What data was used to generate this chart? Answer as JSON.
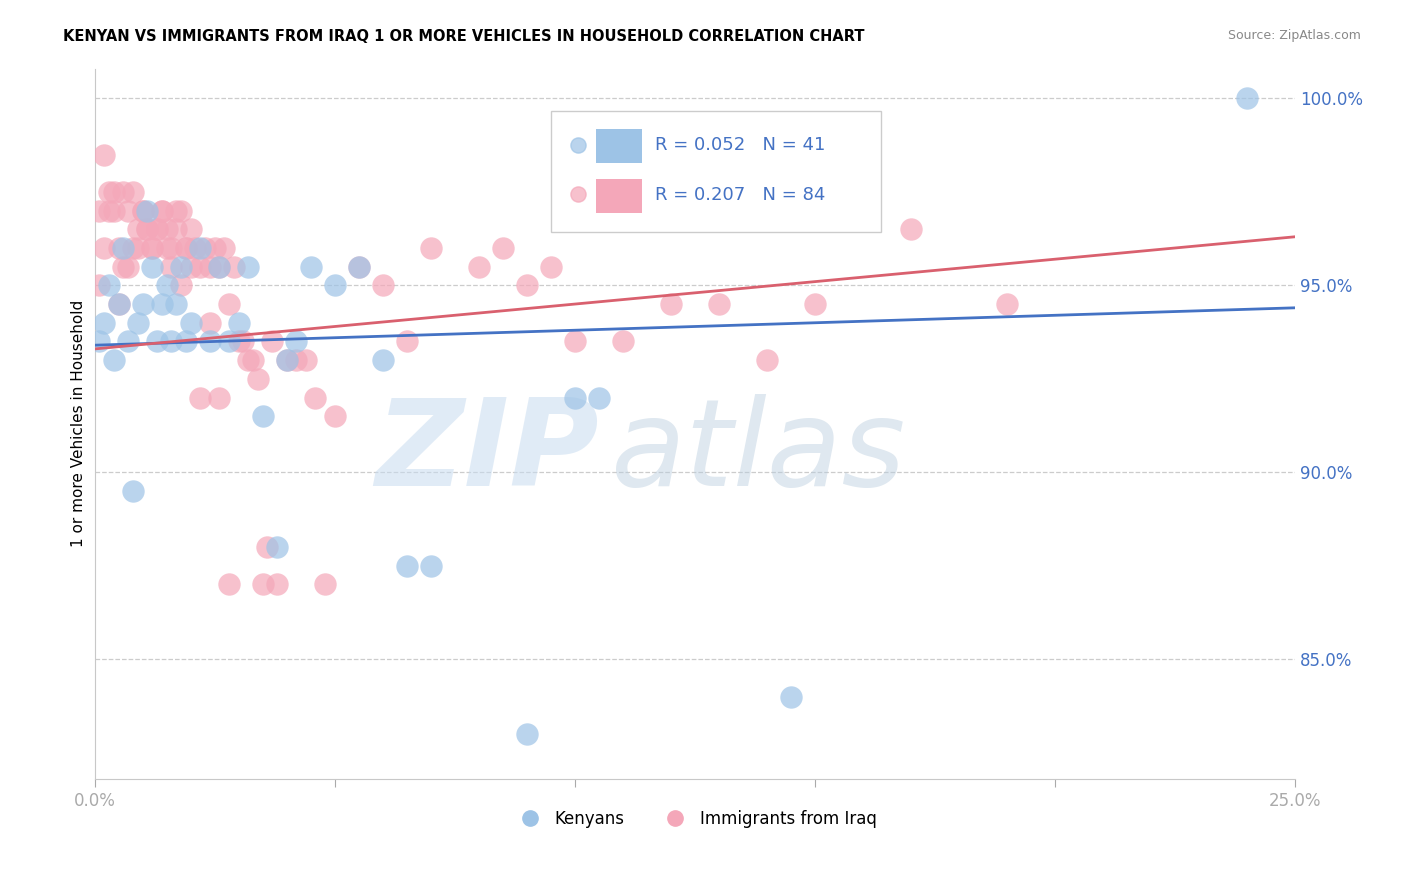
{
  "title": "KENYAN VS IMMIGRANTS FROM IRAQ 1 OR MORE VEHICLES IN HOUSEHOLD CORRELATION CHART",
  "source": "Source: ZipAtlas.com",
  "ylabel": "1 or more Vehicles in Household",
  "xmin": 0.0,
  "xmax": 0.25,
  "ymin": 0.818,
  "ymax": 1.008,
  "x_ticks": [
    0.0,
    0.05,
    0.1,
    0.15,
    0.2,
    0.25
  ],
  "x_tick_labels": [
    "0.0%",
    "",
    "",
    "",
    "",
    "25.0%"
  ],
  "y_ticks": [
    0.85,
    0.9,
    0.95,
    1.0
  ],
  "y_tick_labels": [
    "85.0%",
    "90.0%",
    "95.0%",
    "100.0%"
  ],
  "blue_color": "#9DC3E6",
  "pink_color": "#F4A7B9",
  "blue_line_color": "#4472C4",
  "pink_line_color": "#D9606E",
  "watermark_zip": "ZIP",
  "watermark_atlas": "atlas",
  "kenyans_label": "Kenyans",
  "iraq_label": "Immigrants from Iraq",
  "blue_scatter_x": [
    0.001,
    0.002,
    0.003,
    0.004,
    0.005,
    0.006,
    0.007,
    0.008,
    0.009,
    0.01,
    0.011,
    0.012,
    0.013,
    0.014,
    0.015,
    0.016,
    0.017,
    0.018,
    0.019,
    0.02,
    0.022,
    0.024,
    0.026,
    0.028,
    0.03,
    0.032,
    0.035,
    0.038,
    0.04,
    0.042,
    0.045,
    0.05,
    0.055,
    0.06,
    0.065,
    0.07,
    0.09,
    0.1,
    0.105,
    0.145,
    0.24
  ],
  "blue_scatter_y": [
    0.935,
    0.94,
    0.95,
    0.93,
    0.945,
    0.96,
    0.935,
    0.895,
    0.94,
    0.945,
    0.97,
    0.955,
    0.935,
    0.945,
    0.95,
    0.935,
    0.945,
    0.955,
    0.935,
    0.94,
    0.96,
    0.935,
    0.955,
    0.935,
    0.94,
    0.955,
    0.915,
    0.88,
    0.93,
    0.935,
    0.955,
    0.95,
    0.955,
    0.93,
    0.875,
    0.875,
    0.83,
    0.92,
    0.92,
    0.84,
    1.0
  ],
  "pink_scatter_x": [
    0.001,
    0.002,
    0.003,
    0.004,
    0.005,
    0.006,
    0.007,
    0.008,
    0.009,
    0.01,
    0.011,
    0.012,
    0.013,
    0.014,
    0.015,
    0.016,
    0.017,
    0.018,
    0.019,
    0.02,
    0.021,
    0.022,
    0.023,
    0.024,
    0.025,
    0.026,
    0.027,
    0.028,
    0.029,
    0.03,
    0.031,
    0.032,
    0.033,
    0.034,
    0.035,
    0.036,
    0.037,
    0.038,
    0.04,
    0.042,
    0.044,
    0.046,
    0.048,
    0.05,
    0.055,
    0.06,
    0.065,
    0.07,
    0.08,
    0.085,
    0.09,
    0.095,
    0.1,
    0.11,
    0.12,
    0.13,
    0.14,
    0.15,
    0.17,
    0.19,
    0.001,
    0.002,
    0.003,
    0.004,
    0.005,
    0.006,
    0.007,
    0.008,
    0.009,
    0.01,
    0.011,
    0.012,
    0.013,
    0.014,
    0.015,
    0.016,
    0.017,
    0.018,
    0.019,
    0.02,
    0.022,
    0.024,
    0.026,
    0.028
  ],
  "pink_scatter_y": [
    0.97,
    0.985,
    0.975,
    0.97,
    0.96,
    0.975,
    0.97,
    0.975,
    0.965,
    0.97,
    0.965,
    0.96,
    0.965,
    0.97,
    0.965,
    0.96,
    0.965,
    0.97,
    0.96,
    0.965,
    0.96,
    0.955,
    0.96,
    0.955,
    0.96,
    0.955,
    0.96,
    0.945,
    0.955,
    0.935,
    0.935,
    0.93,
    0.93,
    0.925,
    0.87,
    0.88,
    0.935,
    0.87,
    0.93,
    0.93,
    0.93,
    0.92,
    0.87,
    0.915,
    0.955,
    0.95,
    0.935,
    0.96,
    0.955,
    0.96,
    0.95,
    0.955,
    0.935,
    0.935,
    0.945,
    0.945,
    0.93,
    0.945,
    0.965,
    0.945,
    0.95,
    0.96,
    0.97,
    0.975,
    0.945,
    0.955,
    0.955,
    0.96,
    0.96,
    0.97,
    0.965,
    0.96,
    0.965,
    0.97,
    0.96,
    0.955,
    0.97,
    0.95,
    0.96,
    0.955,
    0.92,
    0.94,
    0.92,
    0.87
  ]
}
